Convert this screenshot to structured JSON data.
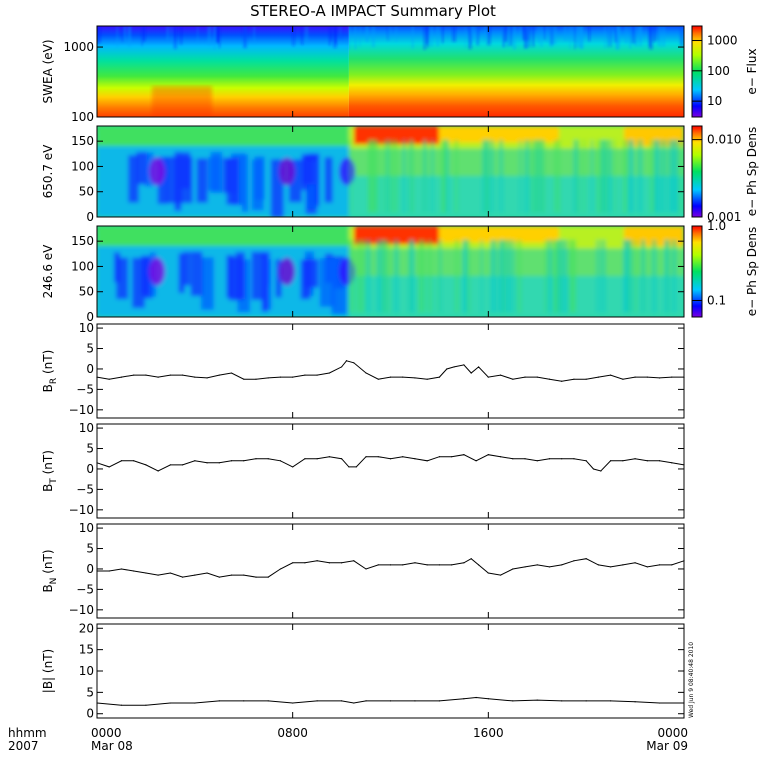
{
  "title": "STEREO-A IMPACT Summary Plot",
  "timestamp_stamp": "Wed Jun 9 08:40:48 2010",
  "x_axis": {
    "label_line1": "hhmm",
    "label_line2": "2007",
    "ticks": [
      {
        "hour": 0,
        "time": "0000",
        "date": "Mar 08"
      },
      {
        "hour": 8,
        "time": "0800",
        "date": ""
      },
      {
        "hour": 16,
        "time": "1600",
        "date": ""
      },
      {
        "hour": 24,
        "time": "0000",
        "date": "Mar 09"
      }
    ],
    "range_hours": [
      0,
      24
    ]
  },
  "chart_data": [
    {
      "type": "heatmap",
      "panel": "swea",
      "ylabel": "SWEA (eV)",
      "yscale": "log",
      "ylim": [
        100,
        2000
      ],
      "yticks": [
        {
          "v": 100,
          "label": "100"
        },
        {
          "v": 1000,
          "label": "1000"
        }
      ],
      "colorbar": {
        "label": "e− Flux",
        "scale": "log",
        "range": [
          3,
          3000
        ],
        "ticks": [
          {
            "v": 10,
            "label": "10"
          },
          {
            "v": 100,
            "label": "100"
          },
          {
            "v": 1000,
            "label": "1000"
          }
        ]
      },
      "description_of_values": "flux decreasing with energy; enhancement after ~10:20"
    },
    {
      "type": "heatmap",
      "panel": "pad650",
      "ylabel": "650.7 eV",
      "ylim": [
        0,
        180
      ],
      "yticks": [
        {
          "v": 0,
          "label": "0"
        },
        {
          "v": 50,
          "label": "50"
        },
        {
          "v": 100,
          "label": "100"
        },
        {
          "v": 150,
          "label": "150"
        }
      ],
      "colorbar": {
        "label": "e− Ph Sp Dens",
        "scale": "log",
        "range": [
          0.001,
          0.015
        ],
        "ticks": [
          {
            "v": 0.001,
            "label": "0.001"
          },
          {
            "v": 0.01,
            "label": "0.010"
          }
        ]
      }
    },
    {
      "type": "heatmap",
      "panel": "pad246",
      "ylabel": "246.6 eV",
      "ylim": [
        0,
        180
      ],
      "yticks": [
        {
          "v": 0,
          "label": "0"
        },
        {
          "v": 50,
          "label": "50"
        },
        {
          "v": 100,
          "label": "100"
        },
        {
          "v": 150,
          "label": "150"
        }
      ],
      "colorbar": {
        "label": "e− Ph Sp Dens",
        "scale": "log",
        "range": [
          0.06,
          1.0
        ],
        "ticks": [
          {
            "v": 0.1,
            "label": "0.1"
          },
          {
            "v": 1.0,
            "label": "1.0"
          }
        ]
      }
    },
    {
      "type": "line",
      "panel": "br",
      "ylabel": "B",
      "ylabel_sub": "R",
      "ylabel_unit": " (nT)",
      "ylim": [
        -12,
        11
      ],
      "yticks": [
        {
          "v": -10,
          "label": "−10"
        },
        {
          "v": -5,
          "label": "−5"
        },
        {
          "v": 0,
          "label": "0"
        },
        {
          "v": 5,
          "label": "5"
        },
        {
          "v": 10,
          "label": "10"
        }
      ],
      "x_hours": [
        0,
        0.5,
        1,
        1.5,
        2,
        2.5,
        3,
        3.5,
        4,
        4.5,
        5,
        5.5,
        6,
        6.5,
        7,
        7.5,
        8,
        8.5,
        9,
        9.5,
        10,
        10.2,
        10.5,
        11,
        11.5,
        12,
        12.5,
        13,
        13.5,
        14,
        14.3,
        14.6,
        15,
        15.3,
        15.6,
        16,
        16.5,
        17,
        17.5,
        18,
        18.5,
        19,
        19.5,
        20,
        20.5,
        21,
        21.5,
        22,
        22.5,
        23,
        23.5,
        24
      ],
      "values": [
        -2,
        -2.5,
        -2,
        -1.5,
        -1.5,
        -2,
        -1.5,
        -1.5,
        -2,
        -2.2,
        -1.5,
        -1,
        -2.5,
        -2.5,
        -2.2,
        -2,
        -2,
        -1.5,
        -1.5,
        -1,
        0.5,
        2,
        1.5,
        -1,
        -2.5,
        -2,
        -2,
        -2.2,
        -2.5,
        -2,
        0,
        0.5,
        1,
        -1,
        0.5,
        -2,
        -1.5,
        -2.5,
        -2,
        -2,
        -2.5,
        -3,
        -2.5,
        -2.5,
        -2,
        -1.5,
        -2.5,
        -2,
        -2,
        -2.2,
        -2,
        -2
      ]
    },
    {
      "type": "line",
      "panel": "bt",
      "ylabel": "B",
      "ylabel_sub": "T",
      "ylabel_unit": " (nT)",
      "ylim": [
        -12,
        11
      ],
      "yticks": [
        {
          "v": -10,
          "label": "−10"
        },
        {
          "v": -5,
          "label": "−5"
        },
        {
          "v": 0,
          "label": "0"
        },
        {
          "v": 5,
          "label": "5"
        },
        {
          "v": 10,
          "label": "10"
        }
      ],
      "x_hours": [
        0,
        0.5,
        1,
        1.5,
        2,
        2.5,
        3,
        3.5,
        4,
        4.5,
        5,
        5.5,
        6,
        6.5,
        7,
        7.5,
        8,
        8.5,
        9,
        9.5,
        10,
        10.3,
        10.6,
        11,
        11.5,
        12,
        12.5,
        13,
        13.5,
        14,
        14.5,
        15,
        15.5,
        16,
        16.5,
        17,
        17.5,
        18,
        18.5,
        19,
        19.5,
        20,
        20.3,
        20.6,
        21,
        21.5,
        22,
        22.5,
        23,
        23.5,
        24
      ],
      "values": [
        1.5,
        0.5,
        2,
        2,
        1,
        -0.5,
        1,
        1,
        2,
        1.5,
        1.5,
        2,
        2,
        2.5,
        2.5,
        2,
        0.5,
        2.5,
        2.5,
        3,
        2.5,
        0.5,
        0.5,
        3,
        3,
        2.5,
        3,
        2.5,
        2,
        3,
        3,
        3.5,
        2,
        3.5,
        3,
        2.5,
        2.5,
        2,
        2.5,
        2.5,
        2.5,
        2,
        0,
        -0.5,
        2,
        2,
        2.5,
        2,
        2,
        1.5,
        1
      ]
    },
    {
      "type": "line",
      "panel": "bn",
      "ylabel": "B",
      "ylabel_sub": "N",
      "ylabel_unit": " (nT)",
      "ylim": [
        -12,
        11
      ],
      "yticks": [
        {
          "v": -10,
          "label": "−10"
        },
        {
          "v": -5,
          "label": "−5"
        },
        {
          "v": 0,
          "label": "0"
        },
        {
          "v": 5,
          "label": "5"
        },
        {
          "v": 10,
          "label": "10"
        }
      ],
      "x_hours": [
        0,
        0.5,
        1,
        1.5,
        2,
        2.5,
        3,
        3.5,
        4,
        4.5,
        5,
        5.5,
        6,
        6.5,
        7,
        7.5,
        8,
        8.5,
        9,
        9.5,
        10,
        10.5,
        11,
        11.5,
        12,
        12.5,
        13,
        13.5,
        14,
        14.5,
        15,
        15.3,
        15.6,
        16,
        16.5,
        17,
        17.5,
        18,
        18.5,
        19,
        19.5,
        20,
        20.5,
        21,
        21.5,
        22,
        22.5,
        23,
        23.5,
        24
      ],
      "values": [
        -0.5,
        -0.5,
        0,
        -0.5,
        -1,
        -1.5,
        -1,
        -2,
        -1.5,
        -1,
        -2,
        -1.5,
        -1.5,
        -2,
        -2,
        0,
        1.5,
        1.5,
        2,
        1.5,
        1.5,
        2,
        0,
        1,
        1,
        1,
        1.5,
        1,
        1,
        1,
        1.5,
        2.5,
        1,
        -1,
        -1.5,
        0,
        0.5,
        1,
        0.5,
        1,
        2,
        2.5,
        1,
        0.5,
        1,
        1.5,
        0.5,
        1,
        1,
        2
      ]
    },
    {
      "type": "line",
      "panel": "bmag",
      "ylabel": "|B| (nT)",
      "ylim": [
        -1,
        21
      ],
      "yticks": [
        {
          "v": 0,
          "label": "0"
        },
        {
          "v": 5,
          "label": "5"
        },
        {
          "v": 10,
          "label": "10"
        },
        {
          "v": 15,
          "label": "15"
        },
        {
          "v": 20,
          "label": "20"
        }
      ],
      "x_hours": [
        0,
        1,
        2,
        3,
        4,
        5,
        6,
        7,
        8,
        9,
        10,
        10.5,
        11,
        12,
        13,
        14,
        15,
        15.5,
        16,
        17,
        18,
        19,
        20,
        21,
        22,
        23,
        24
      ],
      "values": [
        2.5,
        2,
        2,
        2.5,
        2.5,
        3,
        3,
        3,
        2.5,
        3,
        3,
        2.5,
        3,
        3,
        3,
        3,
        3.5,
        3.8,
        3.5,
        3,
        3.2,
        3,
        3,
        3,
        2.8,
        2.5,
        2.5
      ]
    }
  ]
}
